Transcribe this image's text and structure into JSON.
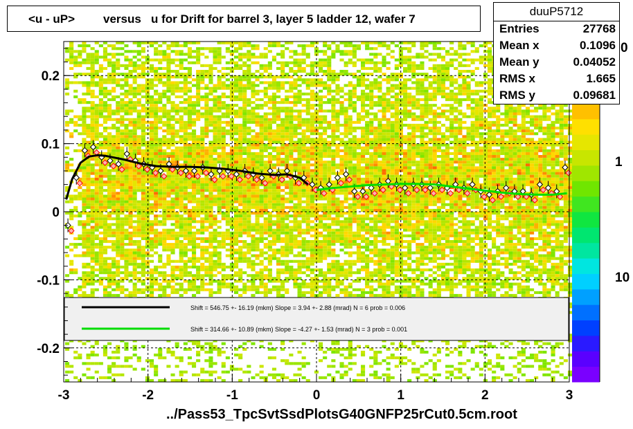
{
  "title": {
    "left": "<u - uP>",
    "right": "versus   u for Drift for barrel 3, layer 5 ladder 12, wafer 7"
  },
  "stats": {
    "name": "duuP5712",
    "rows": [
      {
        "key": "Entries",
        "value": "27768"
      },
      {
        "key": "Mean x",
        "value": "0.1096"
      },
      {
        "key": "Mean y",
        "value": "0.04052"
      },
      {
        "key": "RMS x",
        "value": "1.665"
      },
      {
        "key": "RMS y",
        "value": "0.09681"
      }
    ]
  },
  "footer": "../Pass53_TpcSvtSsdPlotsG40GNFP25rCut0.5cm.root",
  "colors": {
    "fit1": "#000000",
    "fit2": "#00dd00",
    "marker_red": "#ff0000"
  },
  "chart_data": {
    "type": "scatter",
    "xlim": [
      -3,
      3
    ],
    "ylim": [
      -0.25,
      0.25
    ],
    "x_ticks": [
      "-3",
      "-2",
      "-1",
      "0",
      "1",
      "2",
      "3"
    ],
    "y_ticks": [
      "-0.2",
      "-0.1",
      "0",
      "0.1",
      "0.2"
    ],
    "grid": true,
    "z_scale": "log",
    "z_ticks": [
      "1",
      "10"
    ],
    "z_partial_label": "0",
    "legend": [
      {
        "color": "#000000",
        "text": "Shift =   546.75 +- 16.19 (mkm) Slope =     3.94 +- 2.88 (mrad)  N = 6 prob = 0.006"
      },
      {
        "color": "#00dd00",
        "text": "Shift =   314.66 +- 10.89 (mkm) Slope =    -4.27 +- 1.53 (mrad)  N = 3 prob = 0.001"
      }
    ],
    "profile_x": [
      -2.95,
      -2.85,
      -2.75,
      -2.65,
      -2.55,
      -2.45,
      -2.35,
      -2.25,
      -2.15,
      -2.05,
      -1.95,
      -1.85,
      -1.75,
      -1.65,
      -1.55,
      -1.45,
      -1.35,
      -1.25,
      -1.15,
      -1.05,
      -0.95,
      -0.85,
      -0.75,
      -0.65,
      -0.55,
      -0.45,
      -0.35,
      -0.25,
      -0.15,
      -0.05,
      0.05,
      0.15,
      0.25,
      0.35,
      0.45,
      0.55,
      0.65,
      0.75,
      0.85,
      0.95,
      1.05,
      1.15,
      1.25,
      1.35,
      1.45,
      1.55,
      1.65,
      1.75,
      1.85,
      1.95,
      2.05,
      2.15,
      2.25,
      2.35,
      2.45,
      2.55,
      2.65,
      2.75,
      2.85,
      2.95
    ],
    "profile_y": [
      -0.02,
      0.05,
      0.09,
      0.095,
      0.08,
      0.075,
      0.07,
      0.085,
      0.075,
      0.07,
      0.065,
      0.06,
      0.07,
      0.065,
      0.06,
      0.06,
      0.065,
      0.055,
      0.06,
      0.06,
      0.055,
      0.06,
      0.055,
      0.05,
      0.06,
      0.055,
      0.06,
      0.05,
      0.05,
      0.04,
      0.035,
      0.04,
      0.05,
      0.055,
      0.03,
      0.03,
      0.035,
      0.04,
      0.045,
      0.04,
      0.035,
      0.04,
      0.04,
      0.035,
      0.04,
      0.035,
      0.04,
      0.035,
      0.04,
      0.03,
      0.025,
      0.03,
      0.035,
      0.03,
      0.03,
      0.025,
      0.04,
      0.035,
      0.03,
      0.065
    ],
    "fit1": {
      "x": [
        -2.97,
        -2.9,
        -2.8,
        -2.7,
        -2.6,
        -2.5,
        -2.3,
        -2.1,
        -1.9,
        -1.7,
        -1.5,
        -1.3,
        -1.1,
        -0.9,
        -0.7,
        -0.5,
        -0.35,
        -0.2,
        -0.1
      ],
      "y": [
        0.018,
        0.048,
        0.072,
        0.081,
        0.083,
        0.082,
        0.077,
        0.071,
        0.067,
        0.066,
        0.066,
        0.065,
        0.063,
        0.06,
        0.056,
        0.054,
        0.055,
        0.05,
        0.04
      ]
    },
    "fit2": {
      "x": [
        0.0,
        0.2,
        0.4,
        0.6,
        0.8,
        1.0,
        1.2,
        1.4,
        1.6,
        1.8,
        2.0,
        2.2,
        2.4,
        2.6,
        2.8,
        2.97
      ],
      "y": [
        0.032,
        0.035,
        0.037,
        0.039,
        0.04,
        0.041,
        0.041,
        0.04,
        0.037,
        0.034,
        0.031,
        0.028,
        0.026,
        0.025,
        0.025,
        0.027
      ]
    }
  }
}
